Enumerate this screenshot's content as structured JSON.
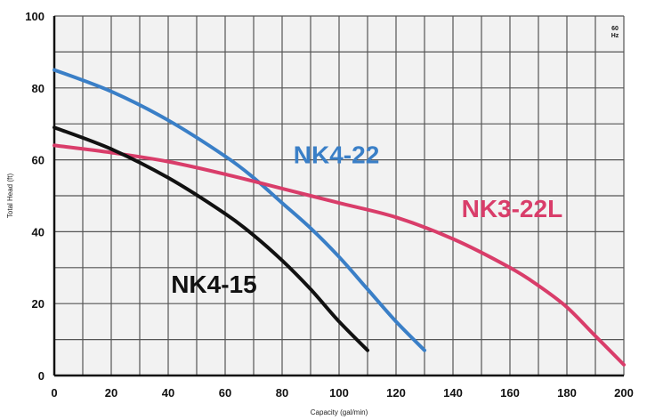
{
  "chart_data": {
    "type": "line",
    "xlabel": "Capacity (gal/min)",
    "ylabel": "Total Head (ft)",
    "xlim": [
      0,
      200
    ],
    "ylim": [
      0,
      100
    ],
    "xticks": [
      0,
      20,
      40,
      60,
      80,
      100,
      120,
      140,
      160,
      180,
      200
    ],
    "yticks": [
      0,
      20,
      40,
      60,
      80,
      100
    ],
    "grid": true,
    "frequency_label": [
      "60",
      "Hz"
    ],
    "series": [
      {
        "name": "NK4-22",
        "color": "#3a7fc7",
        "x": [
          0,
          20,
          40,
          60,
          70,
          80,
          90,
          100,
          110,
          120,
          130
        ],
        "y": [
          85,
          79,
          71,
          61,
          55,
          48,
          41,
          33,
          24,
          15,
          7
        ]
      },
      {
        "name": "NK3-22L",
        "color": "#d93d6a",
        "x": [
          0,
          20,
          40,
          60,
          80,
          100,
          120,
          140,
          160,
          170,
          180,
          190,
          200
        ],
        "y": [
          64,
          62,
          59.5,
          56,
          52,
          48,
          44,
          38,
          30,
          25,
          19,
          11,
          3
        ]
      },
      {
        "name": "NK4-15",
        "color": "#111111",
        "x": [
          0,
          20,
          40,
          60,
          70,
          80,
          90,
          100,
          110
        ],
        "y": [
          69,
          63,
          55,
          45,
          39,
          32,
          24,
          15,
          7
        ]
      }
    ]
  }
}
